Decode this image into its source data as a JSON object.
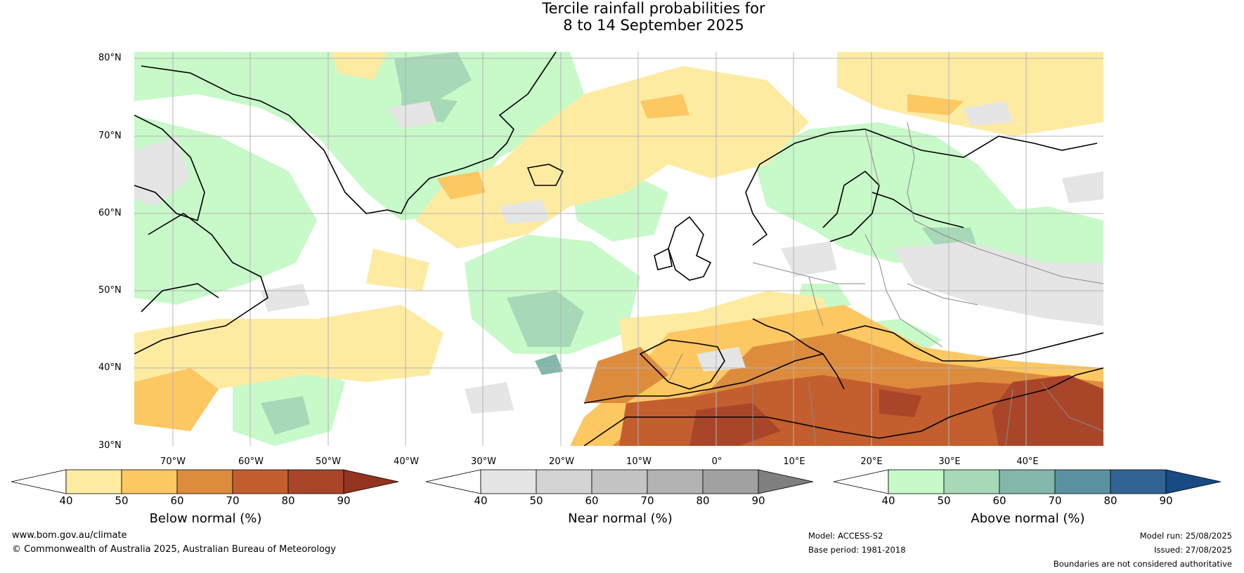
{
  "title": {
    "line1": "Tercile rainfall probabilities for",
    "line2": "8 to 14 September 2025"
  },
  "map": {
    "lat_labels": [
      "80°N",
      "70°N",
      "60°N",
      "50°N",
      "40°N",
      "30°N"
    ],
    "lon_labels": [
      "70°W",
      "60°W",
      "50°W",
      "40°W",
      "30°W",
      "20°W",
      "10°W",
      "0°",
      "10°E",
      "20°E",
      "30°E",
      "40°E"
    ]
  },
  "colorbars": {
    "below": {
      "label": "Below normal (%)",
      "ticks": [
        "40",
        "50",
        "60",
        "70",
        "80",
        "90"
      ],
      "colors": [
        "#ffffff",
        "#feeba2",
        "#fdc761",
        "#dd8c3e",
        "#c35e2e",
        "#a9462a",
        "#94331f"
      ]
    },
    "near": {
      "label": "Near normal (%)",
      "ticks": [
        "40",
        "50",
        "60",
        "70",
        "80",
        "90"
      ],
      "colors": [
        "#ffffff",
        "#e5e5e5",
        "#d4d4d4",
        "#c4c4c4",
        "#b3b3b3",
        "#a1a1a1",
        "#7f7f7f"
      ]
    },
    "above": {
      "label": "Above normal (%)",
      "ticks": [
        "40",
        "50",
        "60",
        "70",
        "80",
        "90"
      ],
      "colors": [
        "#ffffff",
        "#c8f9c9",
        "#a7d8b8",
        "#84b7ac",
        "#5b92a0",
        "#316394",
        "#184a84"
      ]
    }
  },
  "footer": {
    "website": "www.bom.gov.au/climate",
    "copyright": "© Commonwealth of Australia 2025, Australian Bureau of Meteorology",
    "model": "Model: ACCESS-S2",
    "base_period": "Base period: 1981-2018",
    "model_run": "Model run: 25/08/2025",
    "issued": "Issued: 27/08/2025",
    "disclaimer": "Boundaries are not considered authoritative"
  }
}
